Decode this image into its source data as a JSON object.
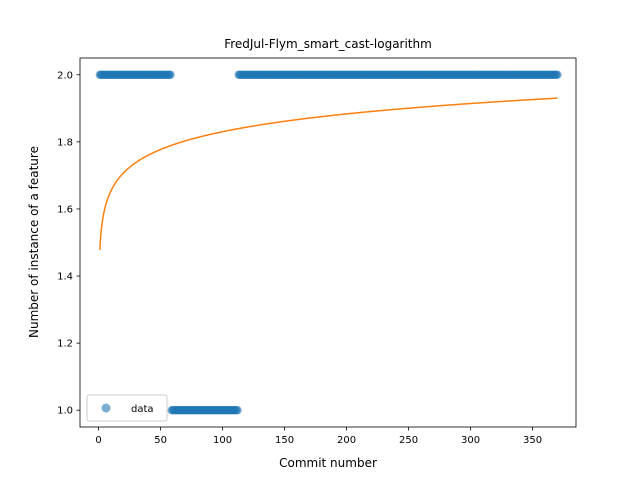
{
  "chart_data": {
    "type": "scatter",
    "title": "FredJul-Flym_smart_cast-logarithm",
    "xlabel": "Commit number",
    "ylabel": "Number of instance of a feature",
    "xlim": [
      -15,
      385
    ],
    "ylim": [
      0.95,
      2.05
    ],
    "xticks": [
      0,
      50,
      100,
      150,
      200,
      250,
      300,
      350
    ],
    "yticks": [
      1.0,
      1.2,
      1.4,
      1.6,
      1.8,
      2.0
    ],
    "ytick_labels": [
      "1.0",
      "1.2",
      "1.4",
      "1.6",
      "1.8",
      "2.0"
    ],
    "grid": false,
    "legend": {
      "position": "lower left",
      "entries": [
        "data"
      ]
    },
    "series": [
      {
        "name": "data",
        "kind": "scatter",
        "color": "#1f77b4",
        "segments": [
          {
            "x_start": 1,
            "x_end": 58,
            "y": 2.0
          },
          {
            "x_start": 59,
            "x_end": 112,
            "y": 1.0
          },
          {
            "x_start": 113,
            "x_end": 370,
            "y": 2.0
          }
        ]
      },
      {
        "kind": "line",
        "color": "#ff7f0e",
        "fit": {
          "model": "logarithmic",
          "a": 1.478,
          "b": 0.0765,
          "x_start": 1,
          "x_end": 370
        }
      }
    ]
  }
}
